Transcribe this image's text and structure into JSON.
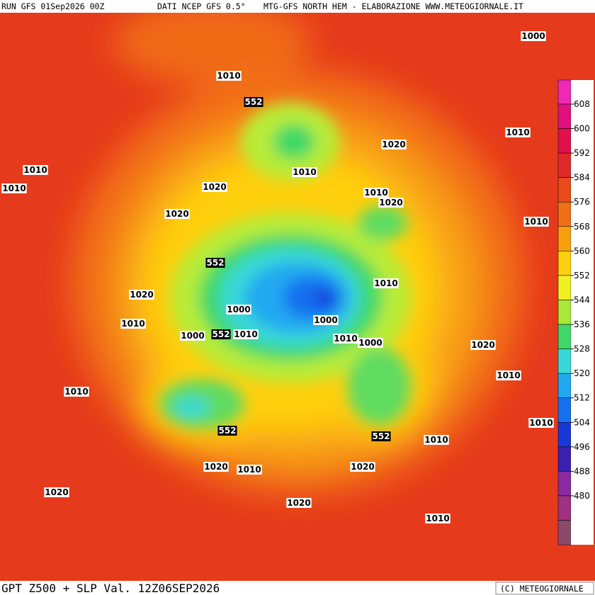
{
  "header": {
    "run": "RUN GFS 01Sep2026 00Z",
    "source": "DATI NCEP GFS 0.5°",
    "credit": "MTG-GFS NORTH HEM - ELABORAZIONE WWW.METEOGIORNALE.IT"
  },
  "footer": {
    "title": "GPT Z500 + SLP Val. 12Z06SEP2026",
    "copyright": "(C) METEOGIORNALE"
  },
  "colorbar": {
    "labels": [
      608,
      600,
      592,
      584,
      576,
      568,
      560,
      552,
      544,
      536,
      528,
      520,
      512,
      504,
      496,
      488,
      480
    ],
    "colors": [
      "#f028b4",
      "#e0107c",
      "#e0104a",
      "#e02a2a",
      "#e84a1a",
      "#f07018",
      "#f8a010",
      "#ffd010",
      "#f0f020",
      "#a8e838",
      "#40d868",
      "#38d8d8",
      "#20a8f0",
      "#1870f0",
      "#1838d8",
      "#3a20b0",
      "#8a2aa0",
      "#a03080",
      "#8c4a6a"
    ]
  },
  "contour_labels": [
    "1000",
    "1010",
    "552",
    "1010",
    "1020",
    "1010",
    "1010",
    "1010",
    "1020",
    "1010",
    "1020",
    "1020",
    "1010",
    "552",
    "1010",
    "1020",
    "1000",
    "1000",
    "1010",
    "1000",
    "552",
    "1010",
    "1010",
    "1000",
    "1020",
    "1010",
    "1010",
    "1010",
    "552",
    "552",
    "1010",
    "1020",
    "1010",
    "1020",
    "1020",
    "1020",
    "1010"
  ]
}
